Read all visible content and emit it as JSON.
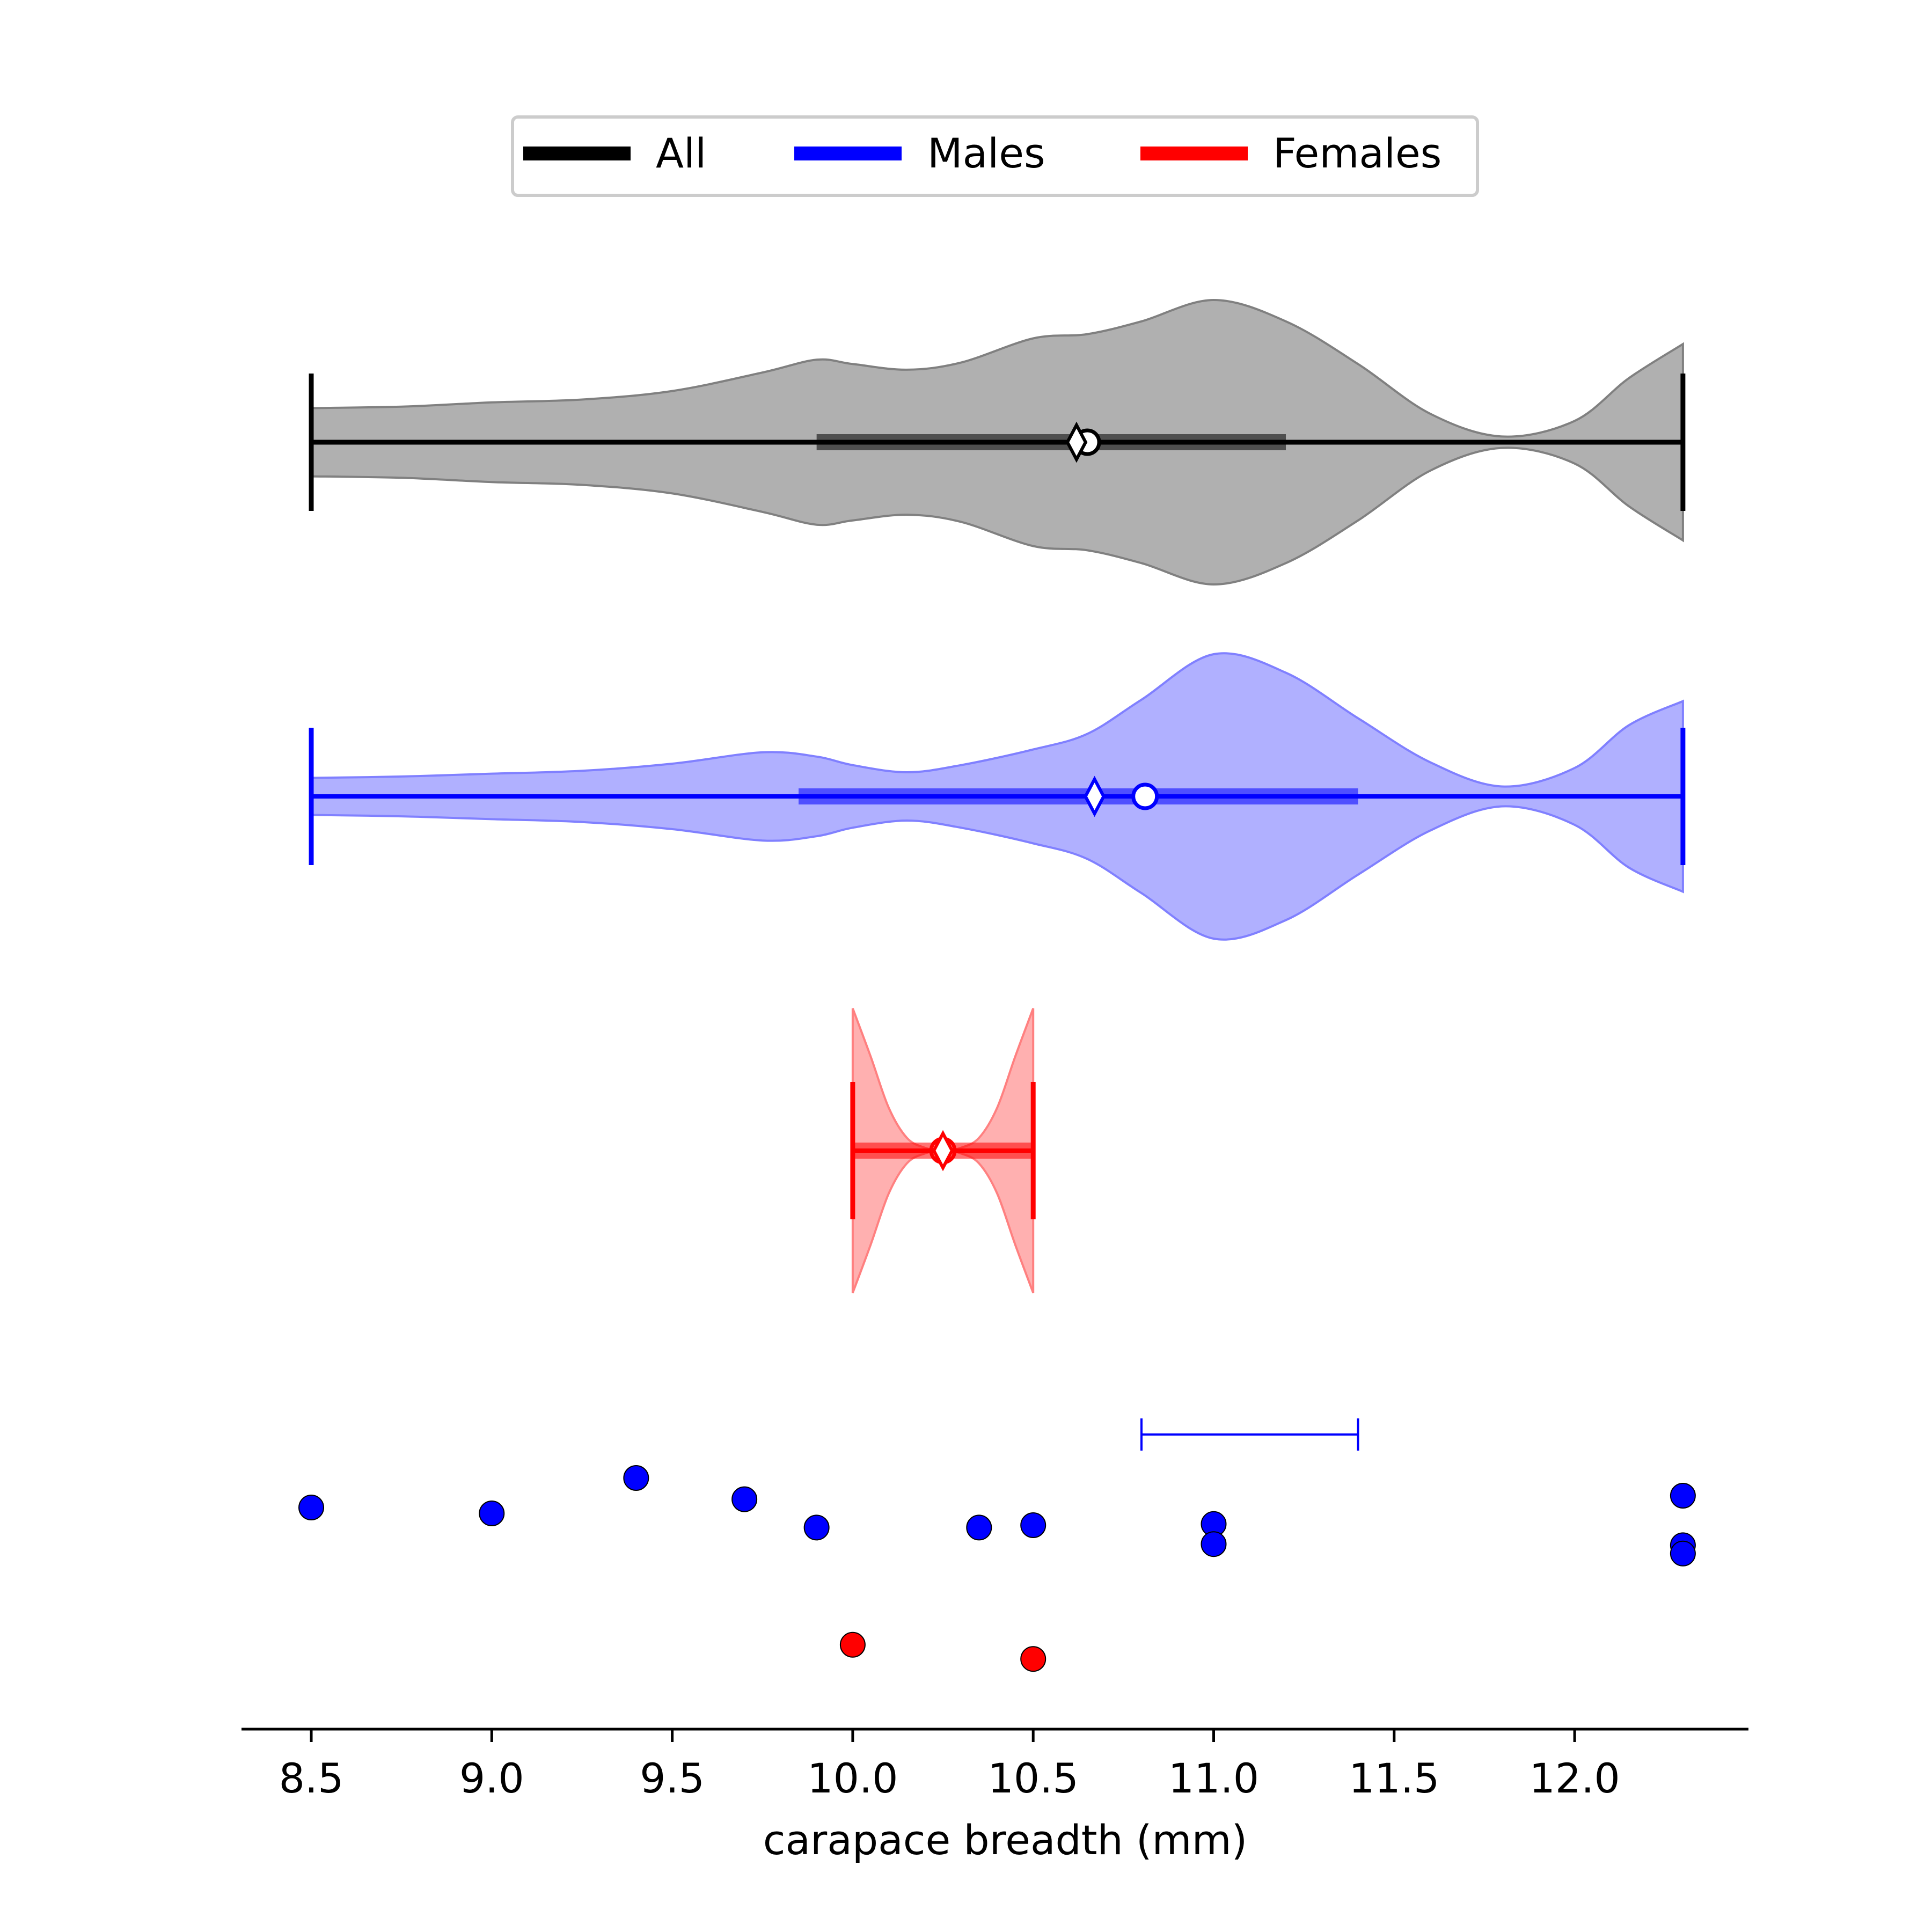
{
  "chart_data": {
    "type": "violin",
    "xlabel": "carapace breadth (mm)",
    "xlim": [
      8.3,
      12.48
    ],
    "xticks": [
      8.5,
      9.0,
      9.5,
      10.0,
      10.5,
      11.0,
      11.5,
      12.0
    ],
    "xtick_labels": [
      "8.5",
      "9.0",
      "9.5",
      "10.0",
      "10.5",
      "11.0",
      "11.5",
      "12.0"
    ],
    "legend": {
      "placement": "top-center",
      "entries": [
        {
          "label": "All",
          "color": "#000000"
        },
        {
          "label": "Males",
          "color": "#0000ff"
        },
        {
          "label": "Females",
          "color": "#ff0000"
        }
      ]
    },
    "series": [
      {
        "name": "All",
        "color": "#000000",
        "fill": "#b0b0b0",
        "outline": "#808080",
        "min": 8.5,
        "max": 12.3,
        "q1": 9.9,
        "q3": 11.2,
        "median": 10.62,
        "mean": 10.65,
        "density": [
          [
            8.5,
            0.24
          ],
          [
            8.75,
            0.25
          ],
          [
            9.0,
            0.28
          ],
          [
            9.25,
            0.3
          ],
          [
            9.5,
            0.36
          ],
          [
            9.75,
            0.49
          ],
          [
            9.9,
            0.58
          ],
          [
            10.0,
            0.55
          ],
          [
            10.15,
            0.51
          ],
          [
            10.3,
            0.56
          ],
          [
            10.5,
            0.73
          ],
          [
            10.65,
            0.76
          ],
          [
            10.8,
            0.85
          ],
          [
            11.0,
            1.0
          ],
          [
            11.2,
            0.85
          ],
          [
            11.4,
            0.55
          ],
          [
            11.6,
            0.2
          ],
          [
            11.8,
            0.04
          ],
          [
            12.0,
            0.15
          ],
          [
            12.15,
            0.45
          ],
          [
            12.3,
            0.69
          ]
        ]
      },
      {
        "name": "Males",
        "color": "#0000ff",
        "fill": "#b0b0ff",
        "outline": "#8080ff",
        "min": 8.5,
        "max": 12.3,
        "q1": 9.85,
        "q3": 11.4,
        "median": 10.67,
        "mean": 10.81,
        "density": [
          [
            8.5,
            0.13
          ],
          [
            8.75,
            0.14
          ],
          [
            9.0,
            0.16
          ],
          [
            9.25,
            0.18
          ],
          [
            9.5,
            0.23
          ],
          [
            9.75,
            0.31
          ],
          [
            9.9,
            0.28
          ],
          [
            10.0,
            0.22
          ],
          [
            10.15,
            0.17
          ],
          [
            10.3,
            0.22
          ],
          [
            10.5,
            0.33
          ],
          [
            10.65,
            0.44
          ],
          [
            10.8,
            0.68
          ],
          [
            11.0,
            1.0
          ],
          [
            11.2,
            0.87
          ],
          [
            11.4,
            0.55
          ],
          [
            11.6,
            0.24
          ],
          [
            11.8,
            0.07
          ],
          [
            12.0,
            0.2
          ],
          [
            12.15,
            0.5
          ],
          [
            12.3,
            0.67
          ]
        ]
      },
      {
        "name": "Females",
        "color": "#ff0000",
        "fill": "#ffb0b0",
        "outline": "#ff8080",
        "min": 10.0,
        "max": 10.5,
        "q1": 10.0,
        "q3": 10.5,
        "median": 10.25,
        "mean": 10.25,
        "density": [
          [
            10.0,
            1.0
          ],
          [
            10.05,
            0.66
          ],
          [
            10.1,
            0.3
          ],
          [
            10.15,
            0.09
          ],
          [
            10.2,
            0.02
          ],
          [
            10.25,
            0.0
          ],
          [
            10.3,
            0.02
          ],
          [
            10.35,
            0.09
          ],
          [
            10.4,
            0.3
          ],
          [
            10.45,
            0.66
          ],
          [
            10.5,
            1.0
          ]
        ]
      }
    ],
    "points": {
      "Males": [
        {
          "x": 8.5,
          "jitter": 0.05
        },
        {
          "x": 9.0,
          "jitter": 0.0
        },
        {
          "x": 9.4,
          "jitter": 0.3
        },
        {
          "x": 9.7,
          "jitter": 0.12
        },
        {
          "x": 9.9,
          "jitter": -0.12
        },
        {
          "x": 10.35,
          "jitter": -0.12
        },
        {
          "x": 10.5,
          "jitter": -0.1
        },
        {
          "x": 11.0,
          "jitter": -0.09
        },
        {
          "x": 11.0,
          "jitter": -0.26
        },
        {
          "x": 12.3,
          "jitter": 0.15
        },
        {
          "x": 12.3,
          "jitter": -0.27
        },
        {
          "x": 12.3,
          "jitter": -0.34
        }
      ],
      "Females": [
        {
          "x": 10.0,
          "jitter": 0.06
        },
        {
          "x": 10.5,
          "jitter": -0.06
        }
      ]
    },
    "interval": {
      "series": "Males",
      "low": 10.8,
      "high": 11.4,
      "color": "#0000ff"
    }
  }
}
